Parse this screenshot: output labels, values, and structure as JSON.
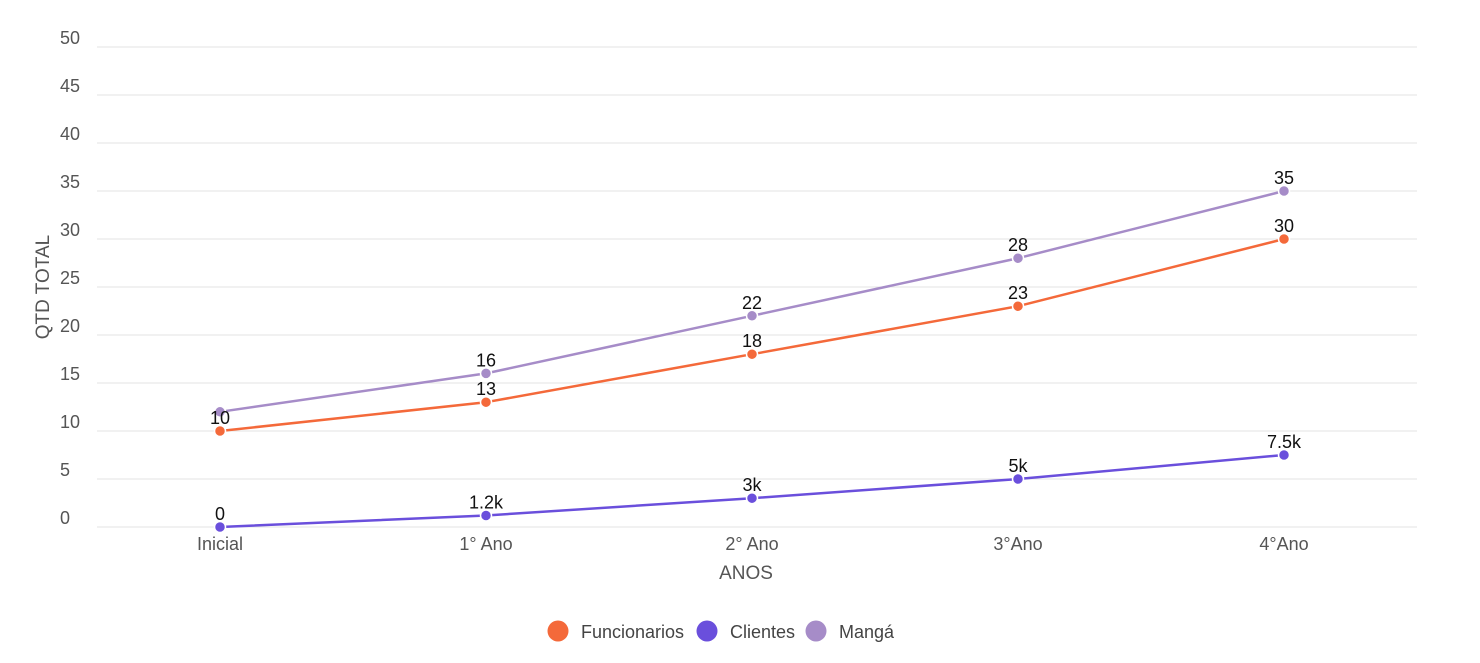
{
  "chart_data": {
    "type": "line",
    "categories": [
      "Inicial",
      "1° Ano",
      "2° Ano",
      "3°Ano",
      "4°Ano"
    ],
    "xlabel": "ANOS",
    "ylabel": "QTD TOTAL",
    "ylim": [
      0,
      50
    ],
    "yticks": [
      "0",
      "5",
      "10",
      "15",
      "20",
      "25",
      "30",
      "35",
      "40",
      "45",
      "50"
    ],
    "grid": true,
    "legend_position": "bottom-center",
    "series": [
      {
        "name": "Funcionarios",
        "color": "#f4693a",
        "values": [
          10,
          13,
          18,
          23,
          30
        ],
        "labels": [
          "10",
          "13",
          "18",
          "23",
          "30"
        ]
      },
      {
        "name": "Clientes",
        "color": "#6a4fdc",
        "values": [
          0,
          1.2,
          3,
          5,
          7.5
        ],
        "labels": [
          "0",
          "1.2k",
          "3k",
          "5k",
          "7.5k"
        ]
      },
      {
        "name": "Mangá",
        "color": "#a68cc8",
        "values": [
          12,
          16,
          22,
          28,
          35
        ],
        "labels": [
          "",
          "16",
          "22",
          "28",
          "35"
        ]
      }
    ]
  }
}
